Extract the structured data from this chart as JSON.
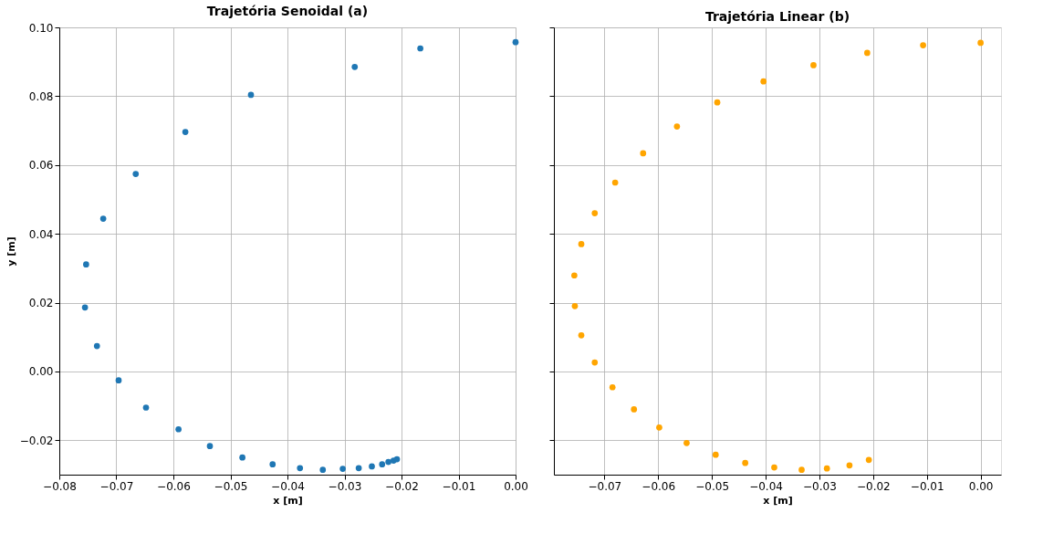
{
  "chart_data": [
    {
      "type": "scatter",
      "title": "Trajetória Senoidal (a)",
      "xlabel": "x [m]",
      "ylabel": "y [m]",
      "marker": "circle",
      "grid": true,
      "x": [
        0.0,
        -0.0167,
        -0.0282,
        -0.0464,
        -0.0579,
        -0.0666,
        -0.0723,
        -0.0753,
        -0.0755,
        -0.0734,
        -0.0696,
        -0.0648,
        -0.0591,
        -0.0536,
        -0.0479,
        -0.0426,
        -0.0378,
        -0.0338,
        -0.0303,
        -0.0275,
        -0.0252,
        -0.0234,
        -0.0223,
        -0.0214,
        -0.0208
      ],
      "series": [
        {
          "color": "#1f77b4",
          "values": [
            0.0957,
            0.0939,
            0.0885,
            0.0804,
            0.0696,
            0.0574,
            0.0444,
            0.0311,
            0.0186,
            0.0074,
            -0.0026,
            -0.0105,
            -0.0168,
            -0.0217,
            -0.025,
            -0.027,
            -0.0281,
            -0.0286,
            -0.0283,
            -0.0281,
            -0.0276,
            -0.027,
            -0.0263,
            -0.0259,
            -0.0255
          ]
        }
      ],
      "xlim": [
        -0.08,
        0.0
      ],
      "ylim": [
        -0.03,
        0.1
      ],
      "xticks": [
        {
          "value": -0.08,
          "label": "−0.08"
        },
        {
          "value": -0.07,
          "label": "−0.07"
        },
        {
          "value": -0.06,
          "label": "−0.06"
        },
        {
          "value": -0.05,
          "label": "−0.05"
        },
        {
          "value": -0.04,
          "label": "−0.04"
        },
        {
          "value": -0.03,
          "label": "−0.03"
        },
        {
          "value": -0.02,
          "label": "−0.02"
        },
        {
          "value": -0.01,
          "label": "−0.01"
        },
        {
          "value": 0.0,
          "label": "0.00"
        }
      ],
      "yticks": [
        {
          "value": -0.02,
          "label": "−0.02"
        },
        {
          "value": 0.0,
          "label": "0.00"
        },
        {
          "value": 0.02,
          "label": "0.02"
        },
        {
          "value": 0.04,
          "label": "0.04"
        },
        {
          "value": 0.06,
          "label": "0.06"
        },
        {
          "value": 0.08,
          "label": "0.08"
        },
        {
          "value": 0.1,
          "label": "0.10"
        }
      ]
    },
    {
      "type": "scatter",
      "title": "Trajetória Linear (b)",
      "xlabel": "x [m]",
      "marker": "circle",
      "grid": true,
      "tick_labels": "x",
      "x": [
        0.0,
        -0.0107,
        -0.0211,
        -0.0311,
        -0.0404,
        -0.049,
        -0.0565,
        -0.0628,
        -0.068,
        -0.0718,
        -0.0743,
        -0.0756,
        -0.0755,
        -0.0743,
        -0.0718,
        -0.0685,
        -0.0645,
        -0.0598,
        -0.0547,
        -0.0493,
        -0.0438,
        -0.0384,
        -0.0333,
        -0.0286,
        -0.0244,
        -0.0208
      ],
      "series": [
        {
          "color": "#ffa500",
          "values": [
            0.0955,
            0.0948,
            0.0926,
            0.089,
            0.0843,
            0.0782,
            0.0712,
            0.0634,
            0.0549,
            0.046,
            0.037,
            0.0279,
            0.019,
            0.0105,
            0.0026,
            -0.0046,
            -0.011,
            -0.0163,
            -0.0208,
            -0.0242,
            -0.0266,
            -0.0279,
            -0.0286,
            -0.0282,
            -0.0273,
            -0.0257
          ]
        }
      ],
      "xlim": [
        -0.0794,
        0.0038
      ],
      "ylim": [
        -0.03,
        0.1
      ],
      "yticks": [
        {
          "value": -0.02,
          "label": null
        },
        {
          "value": 0.0,
          "label": null
        },
        {
          "value": 0.02,
          "label": null
        },
        {
          "value": 0.04,
          "label": null
        },
        {
          "value": 0.06,
          "label": null
        },
        {
          "value": 0.08,
          "label": null
        },
        {
          "value": 0.1,
          "label": null
        }
      ],
      "xticks": [
        {
          "value": -0.07,
          "label": "−0.07"
        },
        {
          "value": -0.06,
          "label": "−0.06"
        },
        {
          "value": -0.05,
          "label": "−0.05"
        },
        {
          "value": -0.04,
          "label": "−0.04"
        },
        {
          "value": -0.03,
          "label": "−0.03"
        },
        {
          "value": -0.02,
          "label": "−0.02"
        },
        {
          "value": -0.01,
          "label": "−0.01"
        },
        {
          "value": 0.0,
          "label": "0.00"
        }
      ]
    }
  ]
}
